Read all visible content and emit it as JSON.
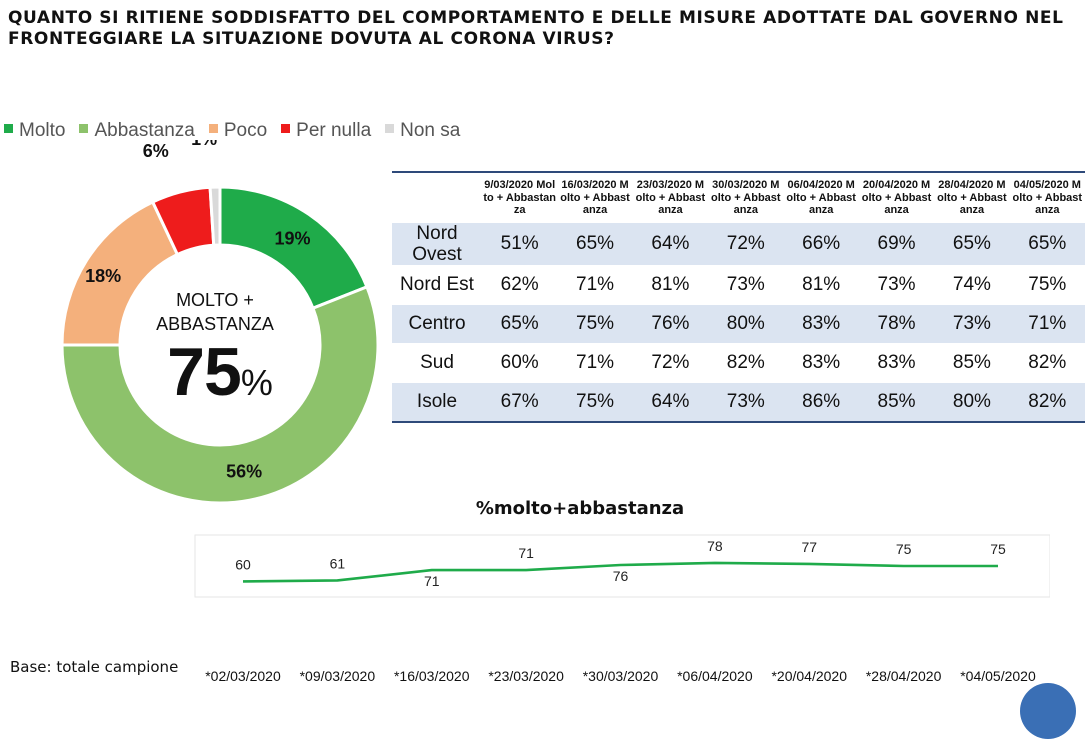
{
  "title": "QUANTO SI RITIENE SODDISFATTO DEL COMPORTAMENTO E DELLE MISURE ADOTTATE DAL GOVERNO NEL FRONTEGGIARE LA SITUAZIONE DOVUTA AL CORONA VIRUS?",
  "center": {
    "line1": "MOLTO +",
    "line2": "ABBASTANZA",
    "value": "75",
    "unit": "%"
  },
  "base_label": "Base: totale campione",
  "colors": {
    "molto": "#1fab4a",
    "abbastanza": "#8dc26b",
    "poco": "#f4b07c",
    "per_nulla": "#ee1c1c",
    "non_sa": "#d9d9d9",
    "line": "#1fab4a",
    "header_rule": "#2e4a7a",
    "row_alt": "#dbe4f1"
  },
  "chart_data": [
    {
      "type": "pie",
      "style": "donut",
      "legend_position": "top-left",
      "slices": [
        {
          "name": "Molto",
          "value": 19,
          "label": "19%",
          "color": "#1fab4a"
        },
        {
          "name": "Abbastanza",
          "value": 56,
          "label": "56%",
          "color": "#8dc26b"
        },
        {
          "name": "Poco",
          "value": 18,
          "label": "18%",
          "color": "#f4b07c"
        },
        {
          "name": "Per nulla",
          "value": 6,
          "label": "6%",
          "color": "#ee1c1c"
        },
        {
          "name": "Non sa",
          "value": 1,
          "label": "1%",
          "color": "#d9d9d9"
        }
      ]
    },
    {
      "type": "table",
      "columns": [
        "9/03/2020 Molto + Abbastanza",
        "16/03/2020 Molto + Abbastanza",
        "23/03/2020 Molto + Abbastanza",
        "30/03/2020 Molto + Abbastanza",
        "06/04/2020 Molto + Abbastanza",
        "20/04/2020 Molto + Abbastanza",
        "28/04/2020 Molto + Abbastanza",
        "04/05/2020 Molto + Abbastanza"
      ],
      "rows": [
        {
          "region": "Nord Ovest",
          "values": [
            "51%",
            "65%",
            "64%",
            "72%",
            "66%",
            "69%",
            "65%",
            "65%"
          ]
        },
        {
          "region": "Nord Est",
          "values": [
            "62%",
            "71%",
            "81%",
            "73%",
            "81%",
            "73%",
            "74%",
            "75%"
          ]
        },
        {
          "region": "Centro",
          "values": [
            "65%",
            "75%",
            "76%",
            "80%",
            "83%",
            "78%",
            "73%",
            "71%"
          ]
        },
        {
          "region": "Sud",
          "values": [
            "60%",
            "71%",
            "72%",
            "82%",
            "83%",
            "83%",
            "85%",
            "82%"
          ]
        },
        {
          "region": "Isole",
          "values": [
            "67%",
            "75%",
            "64%",
            "73%",
            "86%",
            "85%",
            "80%",
            "82%"
          ]
        }
      ]
    },
    {
      "type": "line",
      "title": "%molto+abbastanza",
      "x": [
        "*02/03/2020",
        "*09/03/2020",
        "*16/03/2020",
        "*23/03/2020",
        "*30/03/2020",
        "*06/04/2020",
        "*20/04/2020",
        "*28/04/2020",
        "*04/05/2020"
      ],
      "series": [
        {
          "values": [
            60,
            61,
            71,
            71,
            76,
            78,
            77,
            75,
            75
          ],
          "color": "#1fab4a"
        }
      ],
      "ylim": [
        40,
        110
      ],
      "grid": false
    }
  ]
}
